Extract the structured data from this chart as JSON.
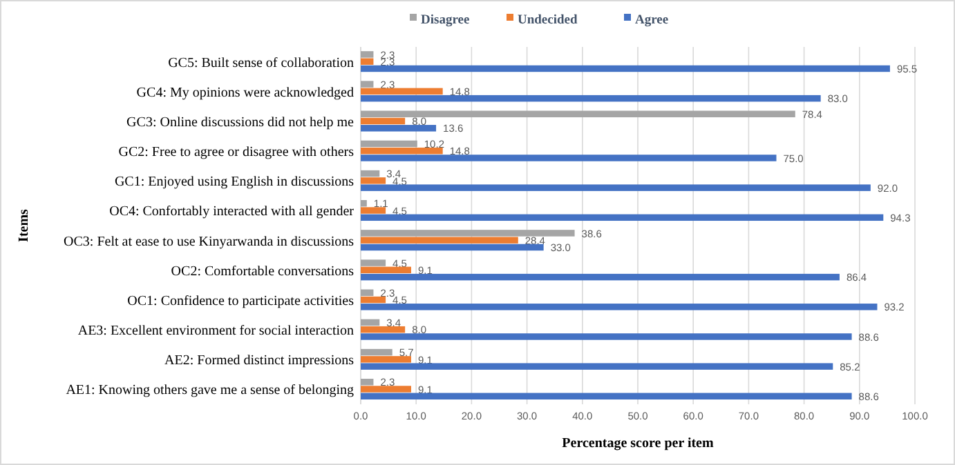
{
  "chart_data": {
    "type": "bar",
    "orientation": "horizontal",
    "xlabel": "Percentage score per item",
    "ylabel": "Items",
    "categories": [
      "GC5: Built sense of collaboration",
      "GC4: My opinions were acknowledged",
      "GC3: Online discussions did not help me",
      "GC2: Free to agree or disagree with others",
      "GC1: Enjoyed using English in discussions",
      "OC4: Confortably interacted with all gender",
      "OC3: Felt at ease to use Kinyarwanda in discussions",
      "OC2: Comfortable conversations",
      "OC1: Confidence to participate activities",
      "AE3: Excellent environment for social interaction",
      "AE2: Formed distinct impressions",
      "AE1: Knowing others gave me a sense of belonging"
    ],
    "series": [
      {
        "name": "Disagree",
        "color": "#a5a5a5",
        "values": [
          2.3,
          2.3,
          78.4,
          10.2,
          3.4,
          1.1,
          38.6,
          4.5,
          2.3,
          3.4,
          5.7,
          2.3
        ],
        "value_labels": [
          "2.3",
          "2.3",
          "78.4",
          "10.2",
          "3.4",
          "1.1",
          "38.6",
          "4.5",
          "2.3",
          "3.4",
          "5.7",
          "2.3"
        ]
      },
      {
        "name": "Undecided",
        "color": "#ed7d31",
        "values": [
          2.3,
          14.8,
          8.0,
          14.8,
          4.5,
          4.5,
          28.4,
          9.1,
          4.5,
          8.0,
          9.1,
          9.1
        ],
        "value_labels": [
          "2.3",
          "14.8",
          "8.0",
          "14.8",
          "4.5",
          "4.5",
          "28.4",
          "9.1",
          "4.5",
          "8.0",
          "9.1",
          "9.1"
        ]
      },
      {
        "name": "Agree",
        "color": "#4472c4",
        "values": [
          95.5,
          83.0,
          13.6,
          75.0,
          92.0,
          94.3,
          33.0,
          86.4,
          93.2,
          88.6,
          85.2,
          88.6
        ],
        "value_labels": [
          "95.5",
          "83.0",
          "13.6",
          "75.0",
          "92.0",
          "94.3",
          "33.0",
          "86.4",
          "93.2",
          "88.6",
          "85.2",
          "88.6"
        ]
      }
    ],
    "xlim": [
      0,
      100
    ],
    "xticks": [
      {
        "value": 0,
        "label": "0.0"
      },
      {
        "value": 10,
        "label": "10.0"
      },
      {
        "value": 20,
        "label": "20.0"
      },
      {
        "value": 30,
        "label": "30.0"
      },
      {
        "value": 40,
        "label": "40.0"
      },
      {
        "value": 50,
        "label": "50.0"
      },
      {
        "value": 60,
        "label": "60.0"
      },
      {
        "value": 70,
        "label": "70.0"
      },
      {
        "value": 80,
        "label": "80.0"
      },
      {
        "value": 90,
        "label": "90.0"
      },
      {
        "value": 100,
        "label": "100.0"
      }
    ],
    "grid": "x",
    "legend": "top"
  }
}
